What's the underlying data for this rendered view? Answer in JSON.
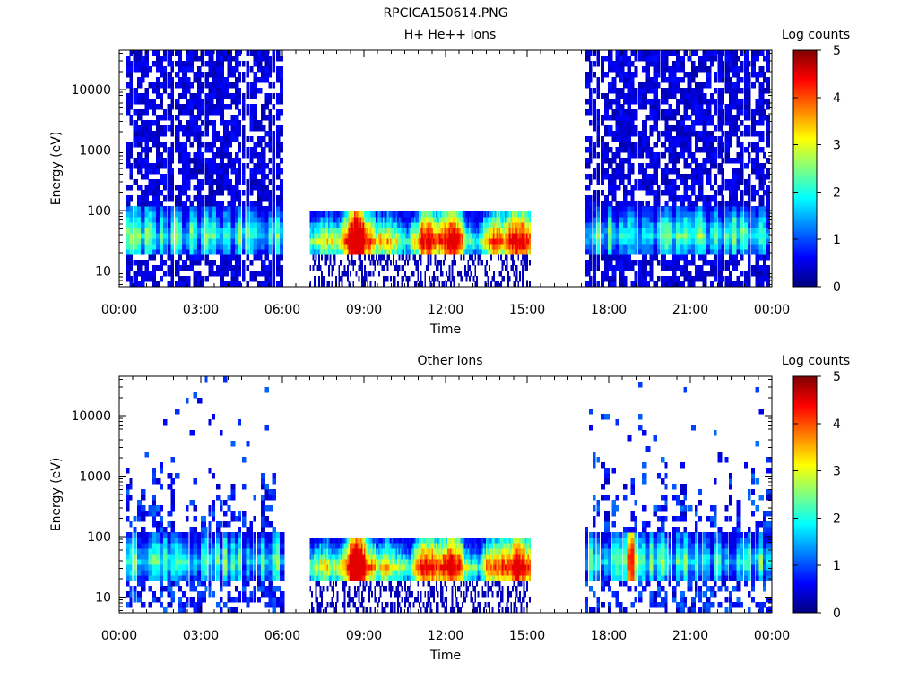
{
  "figure_title": "RPCICA150614.PNG",
  "chart_data": [
    {
      "type": "heatmap",
      "title": "H+ He++ Ions",
      "xlabel": "Time",
      "ylabel": "Energy (eV)",
      "x_tick_labels": [
        "00:00",
        "03:00",
        "06:00",
        "09:00",
        "12:00",
        "15:00",
        "18:00",
        "21:00",
        "00:00"
      ],
      "x_range_hours": [
        0,
        24
      ],
      "y_scale": "log",
      "y_range_ev": [
        5.5,
        45000
      ],
      "y_tick_labels": [
        "10",
        "100",
        "1000",
        "10000"
      ],
      "colorbar": {
        "label": "Log counts",
        "range": [
          0,
          5
        ],
        "tick_labels": [
          "0",
          "1",
          "2",
          "3",
          "4",
          "5"
        ]
      },
      "colormap": [
        "#00007f",
        "#0000ff",
        "#007fff",
        "#00ffff",
        "#7fff7f",
        "#ffff00",
        "#ff7f00",
        "#ff0000",
        "#7f0000"
      ],
      "data_segments": [
        {
          "start_hour": 0.2,
          "end_hour": 6.0,
          "mode": "sparse",
          "e_min": 5.5,
          "e_max": 45000,
          "peak_energy": 40,
          "peak_log_counts": 2.8
        },
        {
          "start_hour": 7.0,
          "end_hour": 15.1,
          "mode": "dense",
          "e_min": 5.5,
          "e_max": 100,
          "peak_energy": 32,
          "peak_log_counts": 4.2
        },
        {
          "start_hour": 17.1,
          "end_hour": 23.9,
          "mode": "sparse",
          "e_min": 5.5,
          "e_max": 45000,
          "peak_energy": 40,
          "peak_log_counts": 2.9
        }
      ]
    },
    {
      "type": "heatmap",
      "title": "Other Ions",
      "xlabel": "Time",
      "ylabel": "Energy (eV)",
      "x_tick_labels": [
        "00:00",
        "03:00",
        "06:00",
        "09:00",
        "12:00",
        "15:00",
        "18:00",
        "21:00",
        "00:00"
      ],
      "x_range_hours": [
        0,
        24
      ],
      "y_scale": "log",
      "y_range_ev": [
        5.5,
        45000
      ],
      "y_tick_labels": [
        "10",
        "100",
        "1000",
        "10000"
      ],
      "colorbar": {
        "label": "Log counts",
        "range": [
          0,
          5
        ],
        "tick_labels": [
          "0",
          "1",
          "2",
          "3",
          "4",
          "5"
        ]
      },
      "colormap": [
        "#00007f",
        "#0000ff",
        "#007fff",
        "#00ffff",
        "#7fff7f",
        "#ffff00",
        "#ff7f00",
        "#ff0000",
        "#7f0000"
      ],
      "data_segments": [
        {
          "start_hour": 0.2,
          "end_hour": 6.0,
          "mode": "scatter",
          "e_min": 5.5,
          "e_max": 45000,
          "peak_energy": 40,
          "peak_log_counts": 3.2
        },
        {
          "start_hour": 7.0,
          "end_hour": 15.1,
          "mode": "dense",
          "e_min": 5.5,
          "e_max": 100,
          "peak_energy": 32,
          "peak_log_counts": 4.2
        },
        {
          "start_hour": 17.1,
          "end_hour": 23.9,
          "mode": "scatter",
          "e_min": 5.5,
          "e_max": 45000,
          "peak_energy": 40,
          "peak_log_counts": 4.3
        }
      ]
    }
  ]
}
